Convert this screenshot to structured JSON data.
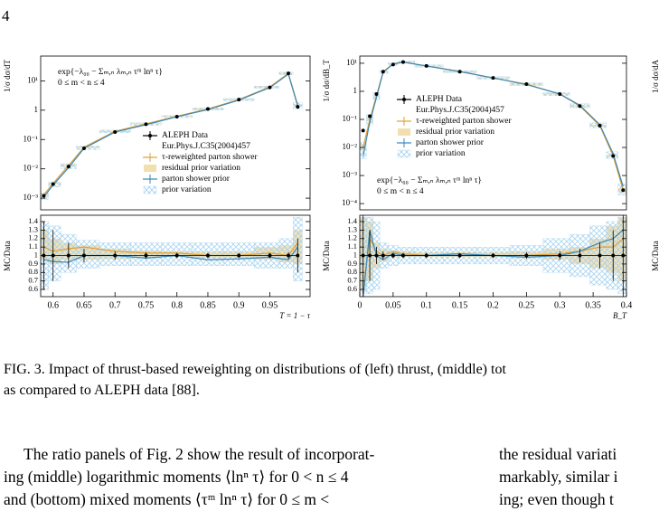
{
  "page_number": "4",
  "chart_data": [
    {
      "type": "line",
      "log_y": true,
      "ylabel": "1/σ dσ/dT",
      "xlim": [
        0.58,
        1.015
      ],
      "ylim": [
        0.0004,
        70
      ],
      "yticks": [
        {
          "value": 0.001,
          "label": "10⁻³"
        },
        {
          "value": 0.01,
          "label": "10⁻²"
        },
        {
          "value": 0.1,
          "label": "10⁻¹"
        },
        1,
        {
          "value": 10,
          "label": "10¹"
        }
      ],
      "annotation": [
        "exp{−λ₀₀ − Σₘ,ₙ λₘ,ₙ τᵐ lnⁿ τ}",
        "0 ≤ m < n ≤ 4"
      ],
      "annotation_location": "upper left",
      "legend_location": "center right",
      "data_reference": "Eur.Phys.J.C35(2004)457",
      "x": [
        0.585,
        0.6,
        0.625,
        0.65,
        0.7,
        0.75,
        0.8,
        0.85,
        0.9,
        0.95,
        0.98,
        0.995
      ],
      "series": [
        {
          "name": "ALEPH Data",
          "color": "#000000",
          "style": "points",
          "values": [
            0.0012,
            0.003,
            0.012,
            0.05,
            0.18,
            0.33,
            0.6,
            1.1,
            2.3,
            6,
            18,
            1.3
          ]
        },
        {
          "name": "τ-reweighted parton shower",
          "color": "#e0a030",
          "values": [
            0.0013,
            0.0032,
            0.013,
            0.055,
            0.19,
            0.34,
            0.62,
            1.1,
            2.3,
            6.2,
            18,
            1.5
          ]
        },
        {
          "name": "residual prior variation",
          "color": "#f3deb0",
          "low": [
            0.0012,
            0.003,
            0.012,
            0.052,
            0.18,
            0.33,
            0.6,
            1.05,
            2.2,
            5.9,
            17,
            1.4
          ],
          "high": [
            0.0014,
            0.0034,
            0.014,
            0.058,
            0.2,
            0.35,
            0.64,
            1.15,
            2.4,
            6.5,
            19,
            1.6
          ]
        },
        {
          "name": "parton shower prior",
          "color": "#3a87b8",
          "values": [
            0.0011,
            0.0028,
            0.011,
            0.05,
            0.18,
            0.32,
            0.6,
            1.05,
            2.2,
            5.9,
            17,
            1.4
          ]
        },
        {
          "name": "prior variation",
          "color": "#9fd0ef",
          "hatch": true,
          "low": [
            0.0009,
            0.0024,
            0.01,
            0.045,
            0.17,
            0.3,
            0.56,
            1,
            2.1,
            5.6,
            16,
            1.1
          ],
          "high": [
            0.0015,
            0.0036,
            0.015,
            0.06,
            0.21,
            0.37,
            0.66,
            1.2,
            2.5,
            6.6,
            20,
            1.8
          ]
        }
      ]
    },
    {
      "type": "line",
      "ylabel": "MC/Data",
      "xlabel": "T = 1 − τ",
      "xlim": [
        0.58,
        1.015
      ],
      "ylim": [
        0.515,
        1.475
      ],
      "yticks": [
        0.6,
        0.7,
        0.8,
        0.9,
        1,
        1.1,
        1.2,
        1.3,
        1.4
      ],
      "xticks": [
        0.6,
        0.65,
        0.7,
        0.75,
        0.8,
        0.85,
        0.9,
        0.95
      ],
      "x": [
        0.585,
        0.6,
        0.625,
        0.65,
        0.7,
        0.75,
        0.8,
        0.85,
        0.9,
        0.95,
        0.98,
        0.995
      ],
      "series": [
        {
          "color": "#f3deb0",
          "low": [
            0.95,
            0.9,
            0.95,
            0.95,
            0.96,
            0.97,
            0.98,
            0.97,
            0.97,
            0.95,
            0.92,
            0.9
          ],
          "high": [
            1.3,
            1.2,
            1.15,
            1.12,
            1.08,
            1.06,
            1.05,
            1.05,
            1.05,
            1.1,
            1.12,
            1.3
          ]
        },
        {
          "color": "#9fd0ef",
          "hatch": true,
          "low": [
            0.6,
            0.7,
            0.8,
            0.85,
            0.88,
            0.88,
            0.88,
            0.88,
            0.88,
            0.85,
            0.85,
            0.7
          ],
          "high": [
            1.4,
            1.35,
            1.25,
            1.18,
            1.15,
            1.15,
            1.15,
            1.15,
            1.15,
            1.15,
            1.2,
            1.45
          ]
        },
        {
          "color": "#e0a030",
          "values": [
            1.1,
            1.05,
            1.08,
            1.1,
            1.05,
            1.03,
            1.03,
            1.0,
            1.0,
            1.03,
            1.0,
            1.15
          ]
        },
        {
          "color": "#3a87b8",
          "values": [
            0.95,
            0.93,
            0.92,
            1.0,
            1.0,
            0.97,
            1.0,
            0.95,
            0.96,
            0.98,
            0.95,
            1.1
          ]
        },
        {
          "color": "#000000",
          "style": "points",
          "values": [
            1,
            1,
            1,
            1,
            1,
            1,
            1,
            1,
            1,
            1,
            1,
            1
          ],
          "errors": [
            0.4,
            0.3,
            0.15,
            0.08,
            0.05,
            0.04,
            0.03,
            0.03,
            0.03,
            0.03,
            0.04,
            0.2
          ]
        }
      ]
    },
    {
      "type": "line",
      "log_y": true,
      "ylabel": "1/σ dσ/dB_T",
      "xlim": [
        0,
        0.4
      ],
      "ylim": [
        6e-05,
        18
      ],
      "yticks": [
        {
          "value": 0.0001,
          "label": "10⁻⁴"
        },
        {
          "value": 0.001,
          "label": "10⁻³"
        },
        {
          "value": 0.01,
          "label": "10⁻²"
        },
        {
          "value": 0.1,
          "label": "10⁻¹"
        },
        1,
        {
          "value": 10,
          "label": "10¹"
        }
      ],
      "annotation": [
        "exp{−λ₀₀ − Σₘ,ₙ λₘ,ₙ τᵐ lnⁿ τ}",
        "0 ≤ m < n ≤ 4"
      ],
      "annotation_location": "lower left",
      "legend_location": "upper center",
      "data_reference": "Eur.Phys.J.C35(2004)457",
      "x": [
        0.005,
        0.015,
        0.025,
        0.035,
        0.05,
        0.065,
        0.1,
        0.15,
        0.2,
        0.25,
        0.3,
        0.33,
        0.36,
        0.38,
        0.395
      ],
      "series": [
        {
          "name": "ALEPH Data",
          "color": "#000000",
          "style": "points",
          "values": [
            0.04,
            0.13,
            0.8,
            5,
            9,
            11,
            8,
            5,
            3,
            1.8,
            0.8,
            0.3,
            0.06,
            0.005,
            0.0003
          ]
        },
        {
          "name": "τ-reweighted parton shower",
          "color": "#e0a030",
          "values": [
            0.01,
            0.1,
            0.7,
            5,
            9.5,
            11,
            8,
            5,
            3,
            1.8,
            0.8,
            0.3,
            0.06,
            0.005,
            0.0003
          ]
        },
        {
          "name": "residual prior variation",
          "color": "#f3deb0",
          "low": [
            0.008,
            0.09,
            0.65,
            4.7,
            9,
            10.5,
            7.7,
            4.8,
            2.9,
            1.7,
            0.76,
            0.28,
            0.055,
            0.0045,
            0.00025
          ],
          "high": [
            0.013,
            0.12,
            0.75,
            5.3,
            10,
            11.5,
            8.3,
            5.2,
            3.1,
            1.9,
            0.84,
            0.32,
            0.065,
            0.0055,
            0.00035
          ]
        },
        {
          "name": "parton shower prior",
          "color": "#3a87b8",
          "values": [
            0.005,
            0.08,
            0.6,
            4.8,
            9.3,
            11,
            8,
            5.1,
            3,
            1.75,
            0.8,
            0.32,
            0.065,
            0.006,
            0.0004
          ]
        },
        {
          "name": "prior variation",
          "color": "#9fd0ef",
          "hatch": true,
          "low": [
            0.004,
            0.06,
            0.5,
            4.3,
            8.5,
            10,
            7.3,
            4.6,
            2.7,
            1.6,
            0.7,
            0.26,
            0.05,
            0.004,
            0.0002
          ],
          "high": [
            0.015,
            0.15,
            0.9,
            5.6,
            10.5,
            12,
            8.8,
            5.5,
            3.3,
            2,
            0.9,
            0.36,
            0.075,
            0.007,
            0.0005
          ]
        }
      ]
    },
    {
      "type": "line",
      "ylabel": "MC/Data",
      "xlabel": "B_T",
      "xlim": [
        0,
        0.4
      ],
      "ylim": [
        0.515,
        1.475
      ],
      "yticks": [
        0.6,
        0.7,
        0.8,
        0.9,
        1,
        1.1,
        1.2,
        1.3,
        1.4
      ],
      "xticks": [
        0,
        0.05,
        0.1,
        0.15,
        0.2,
        0.25,
        0.3,
        0.35,
        0.4
      ],
      "x": [
        0.005,
        0.015,
        0.025,
        0.035,
        0.05,
        0.065,
        0.1,
        0.15,
        0.2,
        0.25,
        0.3,
        0.33,
        0.36,
        0.38,
        0.395
      ],
      "series": [
        {
          "color": "#f3deb0",
          "low": [
            0.6,
            0.7,
            0.85,
            0.93,
            0.97,
            0.98,
            0.98,
            0.98,
            0.98,
            0.97,
            0.95,
            0.9,
            0.85,
            0.8,
            0.7
          ],
          "high": [
            1.45,
            1.4,
            1.15,
            1.08,
            1.06,
            1.05,
            1.04,
            1.04,
            1.04,
            1.05,
            1.08,
            1.1,
            1.2,
            1.35,
            1.45
          ]
        },
        {
          "color": "#9fd0ef",
          "hatch": true,
          "low": [
            0.55,
            0.55,
            0.6,
            0.85,
            0.88,
            0.9,
            0.9,
            0.9,
            0.9,
            0.88,
            0.8,
            0.75,
            0.65,
            0.6,
            0.55
          ],
          "high": [
            1.45,
            1.45,
            1.4,
            1.15,
            1.12,
            1.1,
            1.1,
            1.1,
            1.1,
            1.12,
            1.2,
            1.25,
            1.35,
            1.4,
            1.45
          ]
        },
        {
          "color": "#e0a030",
          "values": [
            0.6,
            1.2,
            1.05,
            1.0,
            1.05,
            1.02,
            1.0,
            1.0,
            1.0,
            1.0,
            1.02,
            1.05,
            1.1,
            1.1,
            1.2
          ]
        },
        {
          "color": "#3a87b8",
          "values": [
            0.5,
            1.3,
            1.0,
            0.95,
            1.03,
            1.0,
            1.0,
            1.02,
            1.0,
            0.98,
            1.0,
            1.05,
            1.15,
            1.2,
            1.3
          ]
        },
        {
          "color": "#000000",
          "style": "points",
          "values": [
            1,
            1,
            1,
            1,
            1,
            1,
            1,
            1,
            1,
            1,
            1,
            1,
            1,
            1,
            1
          ],
          "errors": [
            0.5,
            0.3,
            0.1,
            0.05,
            0.03,
            0.03,
            0.03,
            0.03,
            0.03,
            0.04,
            0.05,
            0.08,
            0.15,
            0.3,
            0.5
          ]
        }
      ]
    }
  ],
  "right_panel": {
    "ylabel": "1/σ dσ/dA",
    "ratio_ylabel": "MC/Data"
  },
  "caption": [
    "FIG. 3. Impact of thrust-based reweighting on distributions of (left) thrust, (middle) tot",
    "as compared to ALEPH data [88]."
  ],
  "body_left": [
    "The ratio panels of Fig. 2 show the result of incorporat-",
    "ing (middle) logarithmic moments ⟨lnⁿ τ⟩ for 0 < n ≤ 4",
    "and (bottom) mixed moments ⟨τᵐ lnⁿ τ⟩ for 0 ≤ m <"
  ],
  "body_right": [
    "the residual variati",
    "markably, similar i",
    "ing; even though t"
  ]
}
